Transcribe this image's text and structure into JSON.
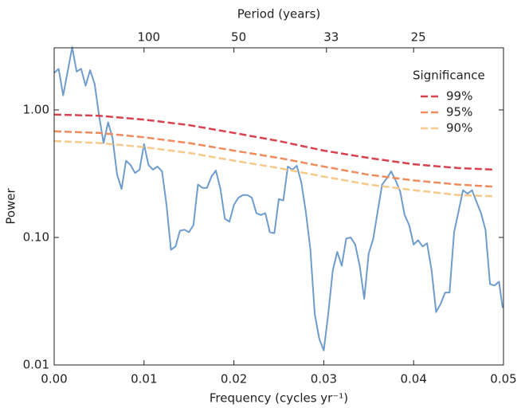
{
  "chart_data": {
    "type": "line",
    "xlabel": "Frequency (cycles yr⁻¹)",
    "ylabel": "Power",
    "x2label": "Period (years)",
    "xlim": [
      0,
      0.05
    ],
    "ylim": [
      0.01,
      3.07
    ],
    "yscale": "log",
    "xticks": [
      {
        "value": 0,
        "label": "0.00"
      },
      0.01,
      0.02,
      0.03,
      0.04,
      0.05
    ],
    "yticks": [
      0.01,
      {
        "value": 0.1,
        "label": "0.10"
      },
      {
        "value": 1,
        "label": "1.00"
      }
    ],
    "x2ticks": [
      {
        "value": 0.01,
        "label": "100"
      },
      {
        "value": 0.02,
        "label": "50"
      },
      {
        "value": 0.0303,
        "label": "33"
      },
      {
        "value": 0.04,
        "label": "25"
      }
    ],
    "legend_title": "Significance",
    "legend_position": "upper right",
    "series": [
      {
        "color": "#6f9ccb",
        "style": "solid",
        "x": [
          0,
          0.0005,
          0.001,
          0.0015,
          0.002,
          0.0025,
          0.003,
          0.0035,
          0.004,
          0.0045,
          0.005,
          0.0055,
          0.006,
          0.0065,
          0.007,
          0.0075,
          0.008,
          0.0085,
          0.009,
          0.0095,
          0.01,
          0.0105,
          0.011,
          0.0115,
          0.012,
          0.0125,
          0.013,
          0.0135,
          0.014,
          0.0145,
          0.015,
          0.0155,
          0.016,
          0.0165,
          0.017,
          0.0175,
          0.018,
          0.0185,
          0.019,
          0.0195,
          0.02,
          0.0205,
          0.021,
          0.0215,
          0.022,
          0.0225,
          0.023,
          0.0235,
          0.024,
          0.0245,
          0.025,
          0.0255,
          0.026,
          0.0265,
          0.027,
          0.0275,
          0.028,
          0.0285,
          0.029,
          0.0295,
          0.03,
          0.0305,
          0.031,
          0.0315,
          0.032,
          0.0325,
          0.033,
          0.0335,
          0.034,
          0.0345,
          0.035,
          0.0355,
          0.036,
          0.0365,
          0.037,
          0.0375,
          0.038,
          0.0385,
          0.039,
          0.0395,
          0.04,
          0.0405,
          0.041,
          0.0415,
          0.042,
          0.0425,
          0.043,
          0.0435,
          0.044,
          0.0445,
          0.045,
          0.0455,
          0.046,
          0.0465,
          0.047,
          0.0475,
          0.048,
          0.0485,
          0.049,
          0.0495,
          0.0499
        ],
        "values": [
          1.95,
          2.1,
          1.3,
          2.0,
          3.1,
          2.0,
          2.1,
          1.55,
          2.05,
          1.6,
          0.9,
          0.55,
          0.8,
          0.6,
          0.31,
          0.24,
          0.4,
          0.37,
          0.32,
          0.34,
          0.54,
          0.37,
          0.34,
          0.36,
          0.33,
          0.18,
          0.08,
          0.085,
          0.113,
          0.115,
          0.11,
          0.125,
          0.26,
          0.245,
          0.245,
          0.3,
          0.335,
          0.24,
          0.14,
          0.133,
          0.18,
          0.205,
          0.215,
          0.215,
          0.205,
          0.155,
          0.15,
          0.155,
          0.11,
          0.108,
          0.2,
          0.195,
          0.36,
          0.34,
          0.365,
          0.27,
          0.16,
          0.082,
          0.025,
          0.016,
          0.013,
          0.025,
          0.055,
          0.077,
          0.06,
          0.098,
          0.1,
          0.088,
          0.06,
          0.033,
          0.075,
          0.097,
          0.16,
          0.26,
          0.29,
          0.33,
          0.28,
          0.23,
          0.15,
          0.125,
          0.088,
          0.095,
          0.085,
          0.09,
          0.055,
          0.026,
          0.03,
          0.037,
          0.037,
          0.11,
          0.16,
          0.235,
          0.22,
          0.235,
          0.19,
          0.155,
          0.115,
          0.043,
          0.042,
          0.045,
          0.028
        ]
      },
      {
        "name": "99%",
        "color": "#d9414f",
        "style": "dashed",
        "x": [
          0,
          0.005,
          0.01,
          0.015,
          0.02,
          0.025,
          0.03,
          0.035,
          0.04,
          0.045,
          0.049
        ],
        "values": [
          0.92,
          0.9,
          0.84,
          0.76,
          0.66,
          0.57,
          0.48,
          0.42,
          0.375,
          0.35,
          0.34
        ]
      },
      {
        "name": "95%",
        "color": "#ef8b5d",
        "style": "dashed",
        "x": [
          0,
          0.005,
          0.01,
          0.015,
          0.02,
          0.025,
          0.03,
          0.035,
          0.04,
          0.045,
          0.049
        ],
        "values": [
          0.68,
          0.66,
          0.61,
          0.55,
          0.48,
          0.42,
          0.36,
          0.31,
          0.28,
          0.26,
          0.25
        ]
      },
      {
        "name": "90%",
        "color": "#f7c98a",
        "style": "dashed",
        "x": [
          0,
          0.005,
          0.01,
          0.015,
          0.02,
          0.025,
          0.03,
          0.035,
          0.04,
          0.045,
          0.049
        ],
        "values": [
          0.57,
          0.55,
          0.51,
          0.46,
          0.4,
          0.35,
          0.3,
          0.26,
          0.235,
          0.215,
          0.21
        ]
      }
    ]
  }
}
